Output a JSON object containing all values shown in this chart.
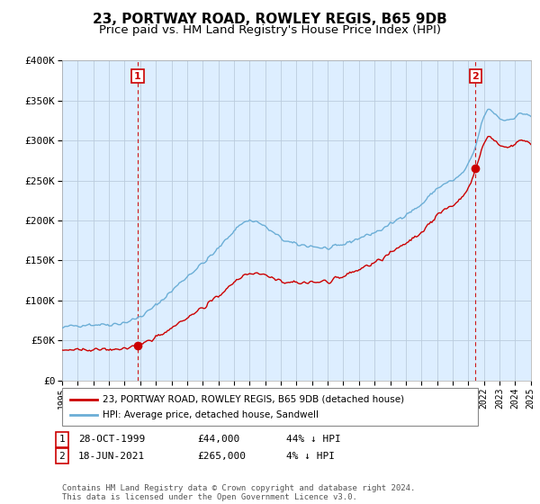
{
  "title": "23, PORTWAY ROAD, ROWLEY REGIS, B65 9DB",
  "subtitle": "Price paid vs. HM Land Registry's House Price Index (HPI)",
  "ylim": [
    0,
    400000
  ],
  "yticks": [
    0,
    50000,
    100000,
    150000,
    200000,
    250000,
    300000,
    350000,
    400000
  ],
  "ytick_labels": [
    "£0",
    "£50K",
    "£100K",
    "£150K",
    "£200K",
    "£250K",
    "£300K",
    "£350K",
    "£400K"
  ],
  "hpi_color": "#6baed6",
  "price_color": "#cc0000",
  "vline_color": "#cc0000",
  "bg_color": "#ffffff",
  "plot_bg_color": "#ddeeff",
  "grid_color": "#bbccdd",
  "sale1_year": 1999.83,
  "sale1_price": 44000,
  "sale1_label": "1",
  "sale2_year": 2021.46,
  "sale2_price": 265000,
  "sale2_label": "2",
  "legend_line1": "23, PORTWAY ROAD, ROWLEY REGIS, B65 9DB (detached house)",
  "legend_line2": "HPI: Average price, detached house, Sandwell",
  "table_row1": [
    "1",
    "28-OCT-1999",
    "£44,000",
    "44% ↓ HPI"
  ],
  "table_row2": [
    "2",
    "18-JUN-2021",
    "£265,000",
    "4% ↓ HPI"
  ],
  "footer": "Contains HM Land Registry data © Crown copyright and database right 2024.\nThis data is licensed under the Open Government Licence v3.0.",
  "title_fontsize": 11,
  "subtitle_fontsize": 9.5,
  "xstart": 1995,
  "xend": 2025
}
